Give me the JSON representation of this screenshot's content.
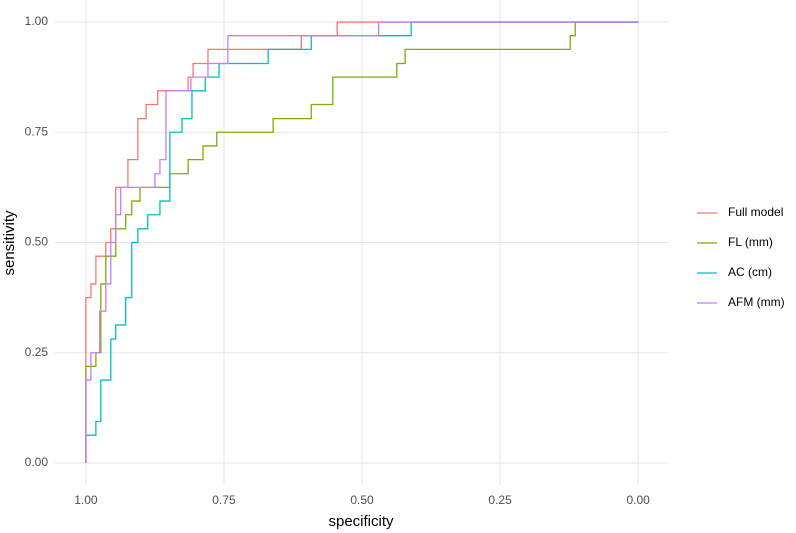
{
  "chart_data": {
    "type": "line",
    "xlabel": "specificity",
    "ylabel": "sensitivity",
    "xlim": [
      1.056,
      -0.054
    ],
    "ylim": [
      -0.05,
      1.05
    ],
    "xticks": [
      {
        "value": 1,
        "label": "1.00"
      },
      {
        "value": 0.75,
        "label": "0.75"
      },
      {
        "value": 0.5,
        "label": "0.50"
      },
      {
        "value": 0.25,
        "label": "0.25"
      },
      {
        "value": 0,
        "label": "0.00"
      }
    ],
    "yticks": [
      {
        "value": 0,
        "label": "0.00"
      },
      {
        "value": 0.25,
        "label": "0.25"
      },
      {
        "value": 0.5,
        "label": "0.50"
      },
      {
        "value": 0.75,
        "label": "0.75"
      },
      {
        "value": 1,
        "label": "1.00"
      }
    ],
    "grid": true,
    "legend": "right",
    "series": [
      {
        "name": "Full model",
        "color": "#F8766D",
        "x": [
          1,
          1,
          0.991,
          0.991,
          0.982,
          0.982,
          0.964,
          0.964,
          0.955,
          0.955,
          0.946,
          0.946,
          0.924,
          0.924,
          0.906,
          0.906,
          0.891,
          0.891,
          0.87,
          0.87,
          0.815,
          0.815,
          0.806,
          0.806,
          0.779,
          0.779,
          0.61,
          0.61,
          0.545,
          0.545,
          0
        ],
        "values": [
          0,
          0.375,
          0.375,
          0.406,
          0.406,
          0.469,
          0.469,
          0.5,
          0.5,
          0.531,
          0.531,
          0.625,
          0.625,
          0.688,
          0.688,
          0.781,
          0.781,
          0.813,
          0.813,
          0.844,
          0.844,
          0.875,
          0.875,
          0.906,
          0.906,
          0.938,
          0.938,
          0.969,
          0.969,
          1,
          1
        ]
      },
      {
        "name": "FL (mm)",
        "color": "#7CAE00",
        "x": [
          1,
          1,
          0.982,
          0.982,
          0.973,
          0.973,
          0.964,
          0.964,
          0.946,
          0.946,
          0.928,
          0.928,
          0.917,
          0.917,
          0.902,
          0.902,
          0.848,
          0.848,
          0.815,
          0.815,
          0.788,
          0.788,
          0.763,
          0.763,
          0.661,
          0.661,
          0.592,
          0.592,
          0.553,
          0.553,
          0.437,
          0.437,
          0.422,
          0.422,
          0.123,
          0.123,
          0.114,
          0.114,
          0
        ],
        "values": [
          0,
          0.219,
          0.219,
          0.25,
          0.25,
          0.406,
          0.406,
          0.469,
          0.469,
          0.531,
          0.531,
          0.563,
          0.563,
          0.594,
          0.594,
          0.625,
          0.625,
          0.656,
          0.656,
          0.688,
          0.688,
          0.719,
          0.719,
          0.75,
          0.75,
          0.781,
          0.781,
          0.813,
          0.813,
          0.875,
          0.875,
          0.906,
          0.906,
          0.938,
          0.938,
          0.969,
          0.969,
          1,
          1
        ]
      },
      {
        "name": "AC (cm)",
        "color": "#00BFC4",
        "x": [
          1,
          1,
          0.982,
          0.982,
          0.973,
          0.973,
          0.955,
          0.955,
          0.946,
          0.946,
          0.928,
          0.928,
          0.917,
          0.917,
          0.906,
          0.906,
          0.888,
          0.888,
          0.866,
          0.866,
          0.848,
          0.848,
          0.826,
          0.826,
          0.808,
          0.808,
          0.784,
          0.784,
          0.759,
          0.759,
          0.67,
          0.67,
          0.592,
          0.592,
          0.411,
          0.411,
          0
        ],
        "values": [
          0,
          0.063,
          0.063,
          0.094,
          0.094,
          0.188,
          0.188,
          0.281,
          0.281,
          0.313,
          0.313,
          0.375,
          0.375,
          0.5,
          0.5,
          0.531,
          0.531,
          0.563,
          0.563,
          0.594,
          0.594,
          0.75,
          0.75,
          0.781,
          0.781,
          0.844,
          0.844,
          0.875,
          0.875,
          0.906,
          0.906,
          0.938,
          0.938,
          0.969,
          0.969,
          1,
          1
        ]
      },
      {
        "name": "AFM (mm)",
        "color": "#C77CFF",
        "x": [
          1,
          1,
          0.991,
          0.991,
          0.975,
          0.975,
          0.964,
          0.964,
          0.955,
          0.955,
          0.946,
          0.946,
          0.937,
          0.937,
          0.875,
          0.875,
          0.866,
          0.866,
          0.855,
          0.855,
          0.81,
          0.81,
          0.779,
          0.779,
          0.743,
          0.743,
          0.47,
          0.47,
          0
        ],
        "values": [
          0,
          0.188,
          0.188,
          0.25,
          0.25,
          0.344,
          0.344,
          0.406,
          0.406,
          0.5,
          0.5,
          0.563,
          0.563,
          0.625,
          0.625,
          0.656,
          0.656,
          0.688,
          0.688,
          0.844,
          0.844,
          0.875,
          0.875,
          0.906,
          0.906,
          0.969,
          0.969,
          1,
          1
        ]
      }
    ]
  }
}
